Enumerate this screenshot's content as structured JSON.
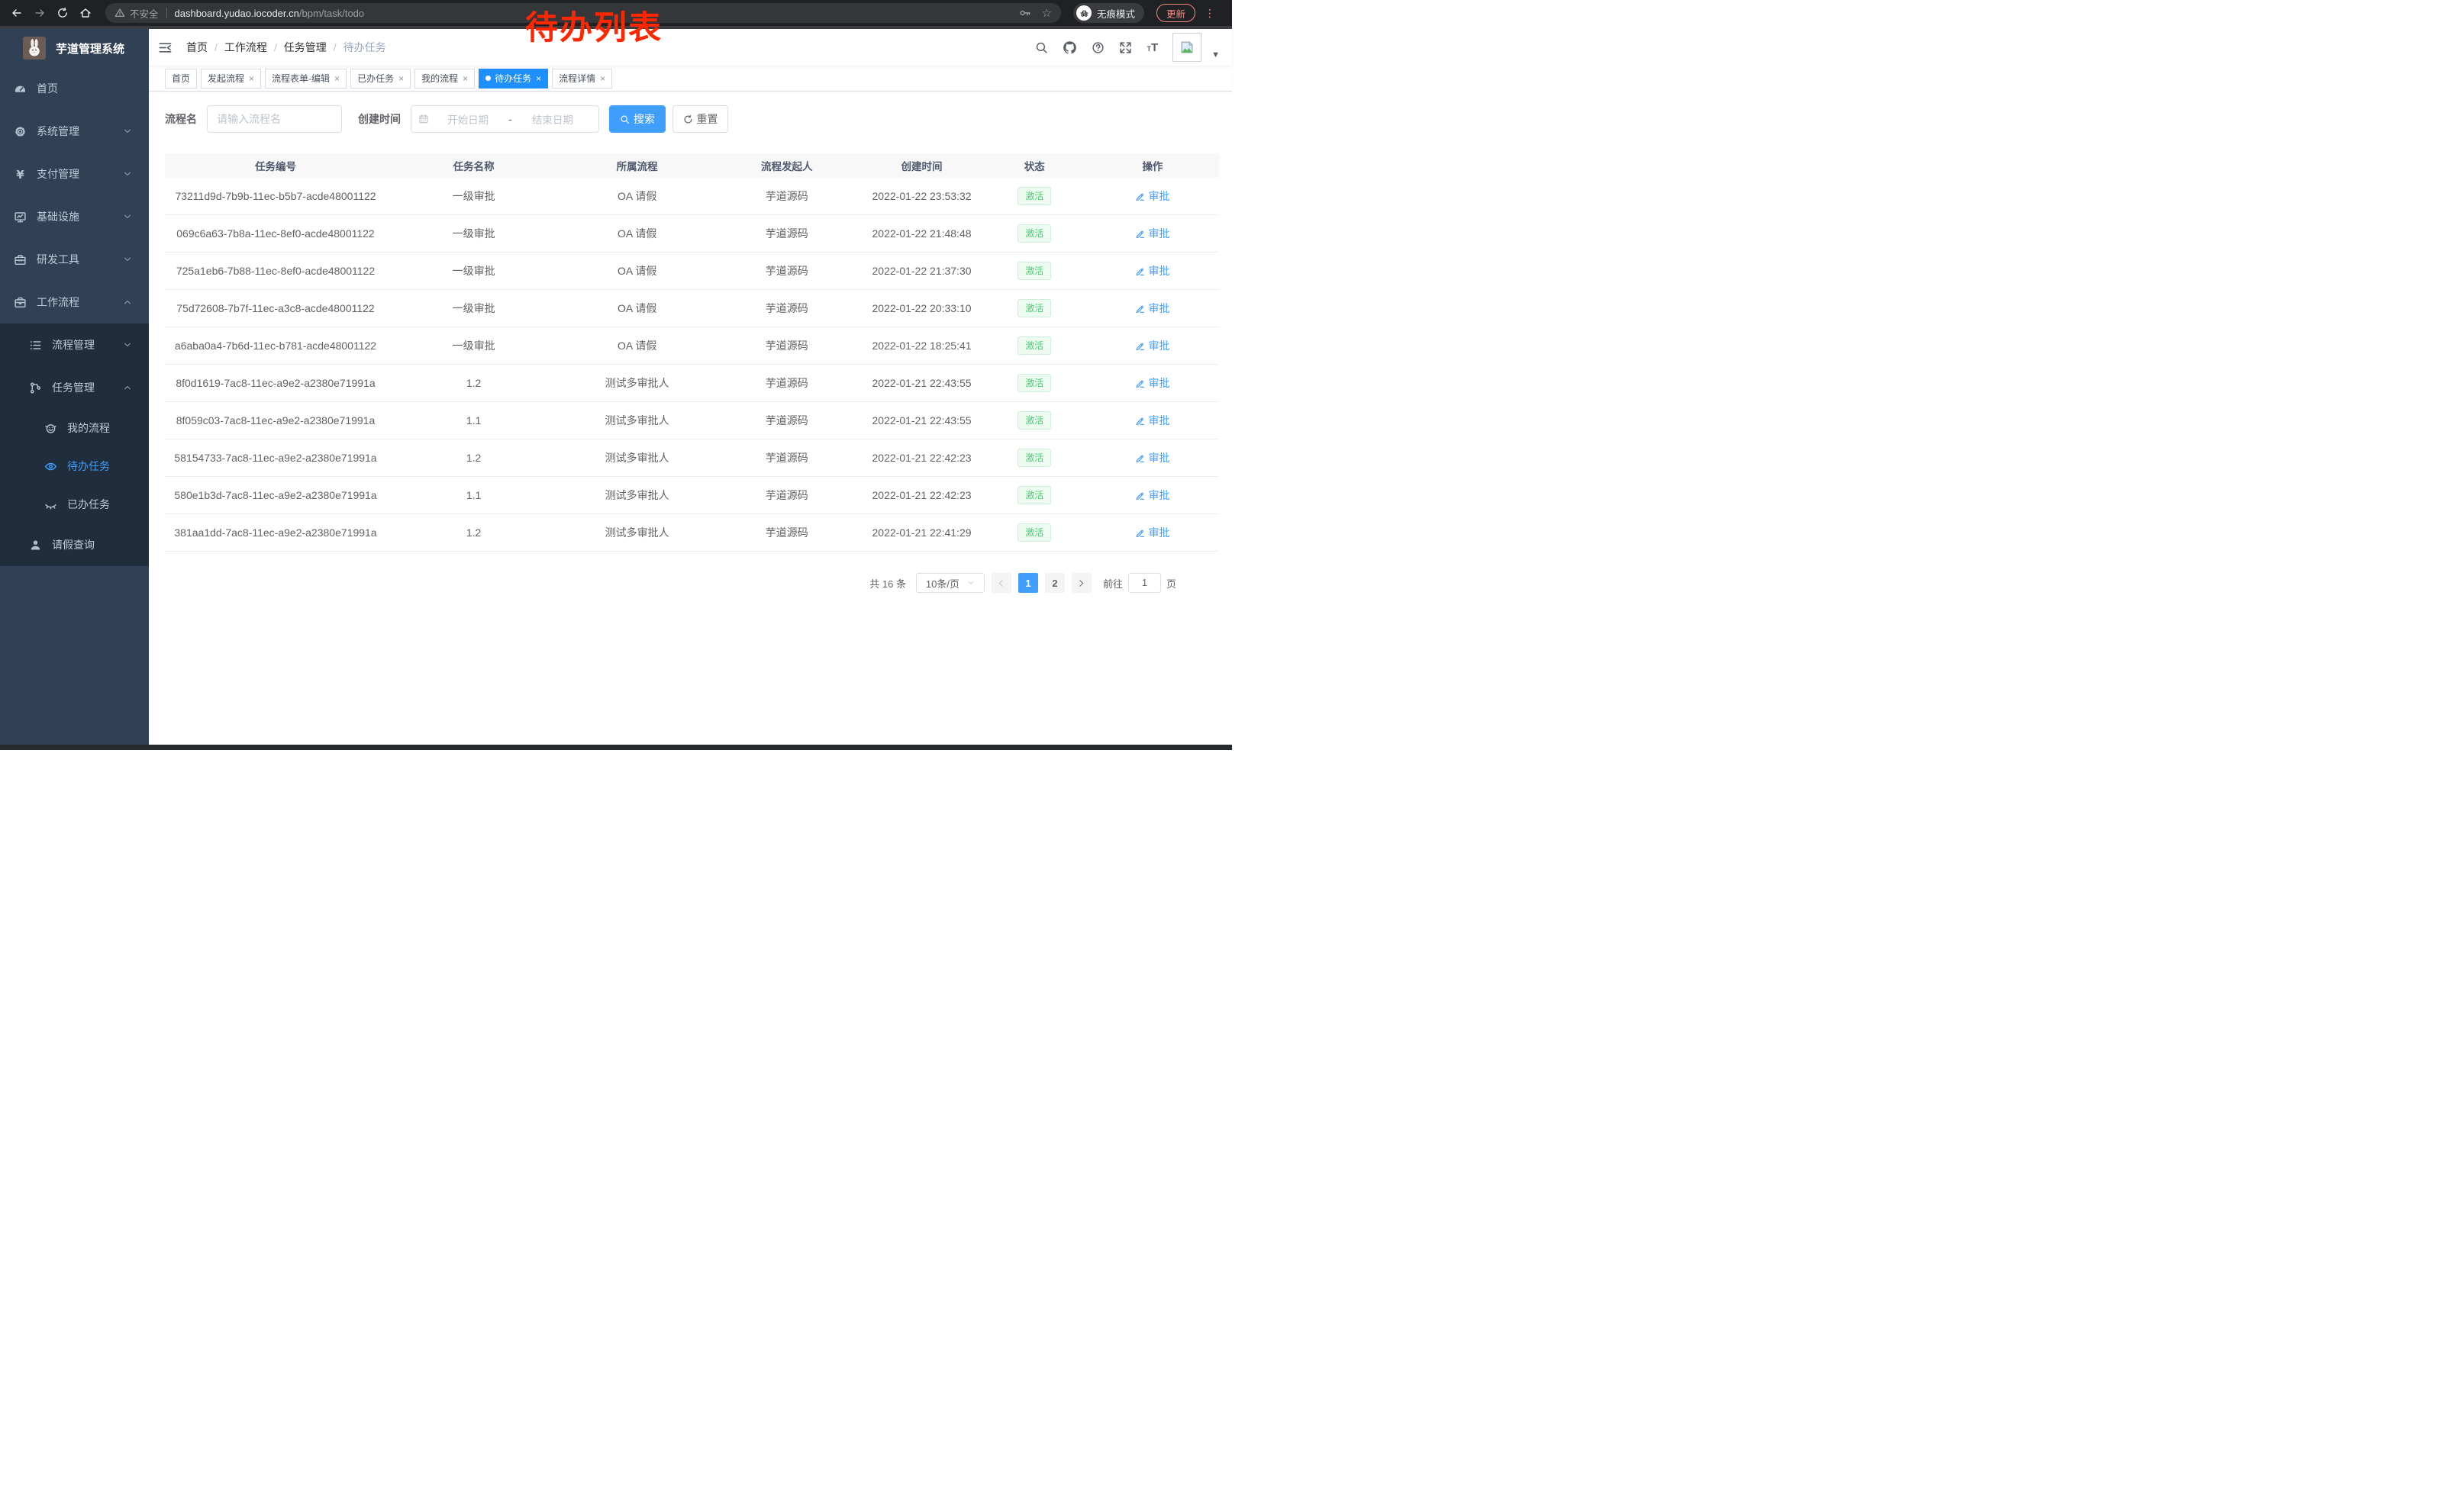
{
  "browser": {
    "security_label": "不安全",
    "url_host": "dashboard.yudao.iocoder.cn",
    "url_path": "/bpm/task/todo",
    "incognito_label": "无痕模式",
    "update_label": "更新",
    "menu_dots": "⋮",
    "star": "☆"
  },
  "annotation": {
    "text": "待办列表",
    "color": "#ff2600"
  },
  "sidebar": {
    "title": "芋道管理系统",
    "items": [
      {
        "label": "首页",
        "icon": "dashboard-icon",
        "level": 1
      },
      {
        "label": "系统管理",
        "icon": "gear-icon",
        "level": 1,
        "chevron": "down"
      },
      {
        "label": "支付管理",
        "icon": "yen-icon",
        "level": 1,
        "chevron": "down"
      },
      {
        "label": "基础设施",
        "icon": "monitor-icon",
        "level": 1,
        "chevron": "down"
      },
      {
        "label": "研发工具",
        "icon": "toolbox-icon",
        "level": 1,
        "chevron": "down"
      },
      {
        "label": "工作流程",
        "icon": "briefcase-icon",
        "level": 1,
        "chevron": "up"
      },
      {
        "label": "流程管理",
        "icon": "list-icon",
        "level": 2,
        "chevron": "down",
        "dark": true
      },
      {
        "label": "任务管理",
        "icon": "flow-icon",
        "level": 2,
        "chevron": "up",
        "dark": true
      },
      {
        "label": "我的流程",
        "icon": "face-icon",
        "level": 3,
        "dark": true
      },
      {
        "label": "待办任务",
        "icon": "eye-icon",
        "level": 3,
        "dark": true,
        "active": true
      },
      {
        "label": "已办任务",
        "icon": "eye-closed-icon",
        "level": 3,
        "dark": true
      },
      {
        "label": "请假查询",
        "icon": "user-icon",
        "level": 2,
        "dark": true
      }
    ]
  },
  "breadcrumb": [
    "首页",
    "工作流程",
    "任务管理",
    "待办任务"
  ],
  "tabs": [
    {
      "label": "首页",
      "closable": false
    },
    {
      "label": "发起流程",
      "closable": true
    },
    {
      "label": "流程表单-编辑",
      "closable": true
    },
    {
      "label": "已办任务",
      "closable": true
    },
    {
      "label": "我的流程",
      "closable": true
    },
    {
      "label": "待办任务",
      "closable": true,
      "active": true
    },
    {
      "label": "流程详情",
      "closable": true
    }
  ],
  "filters": {
    "name_label": "流程名",
    "name_placeholder": "请输入流程名",
    "time_label": "创建时间",
    "start_placeholder": "开始日期",
    "range_separator": "-",
    "end_placeholder": "结束日期",
    "search_label": "搜索",
    "reset_label": "重置"
  },
  "table": {
    "columns": [
      "任务编号",
      "任务名称",
      "所属流程",
      "流程发起人",
      "创建时间",
      "状态",
      "操作"
    ],
    "rows": [
      {
        "id": "73211d9d-7b9b-11ec-b5b7-acde48001122",
        "name": "一级审批",
        "process": "OA 请假",
        "starter": "芋道源码",
        "time": "2022-01-22 23:53:32",
        "status": "激活",
        "action": "审批"
      },
      {
        "id": "069c6a63-7b8a-11ec-8ef0-acde48001122",
        "name": "一级审批",
        "process": "OA 请假",
        "starter": "芋道源码",
        "time": "2022-01-22 21:48:48",
        "status": "激活",
        "action": "审批"
      },
      {
        "id": "725a1eb6-7b88-11ec-8ef0-acde48001122",
        "name": "一级审批",
        "process": "OA 请假",
        "starter": "芋道源码",
        "time": "2022-01-22 21:37:30",
        "status": "激活",
        "action": "审批"
      },
      {
        "id": "75d72608-7b7f-11ec-a3c8-acde48001122",
        "name": "一级审批",
        "process": "OA 请假",
        "starter": "芋道源码",
        "time": "2022-01-22 20:33:10",
        "status": "激活",
        "action": "审批"
      },
      {
        "id": "a6aba0a4-7b6d-11ec-b781-acde48001122",
        "name": "一级审批",
        "process": "OA 请假",
        "starter": "芋道源码",
        "time": "2022-01-22 18:25:41",
        "status": "激活",
        "action": "审批"
      },
      {
        "id": "8f0d1619-7ac8-11ec-a9e2-a2380e71991a",
        "name": "1.2",
        "process": "测试多审批人",
        "starter": "芋道源码",
        "time": "2022-01-21 22:43:55",
        "status": "激活",
        "action": "审批"
      },
      {
        "id": "8f059c03-7ac8-11ec-a9e2-a2380e71991a",
        "name": "1.1",
        "process": "测试多审批人",
        "starter": "芋道源码",
        "time": "2022-01-21 22:43:55",
        "status": "激活",
        "action": "审批"
      },
      {
        "id": "58154733-7ac8-11ec-a9e2-a2380e71991a",
        "name": "1.2",
        "process": "测试多审批人",
        "starter": "芋道源码",
        "time": "2022-01-21 22:42:23",
        "status": "激活",
        "action": "审批"
      },
      {
        "id": "580e1b3d-7ac8-11ec-a9e2-a2380e71991a",
        "name": "1.1",
        "process": "测试多审批人",
        "starter": "芋道源码",
        "time": "2022-01-21 22:42:23",
        "status": "激活",
        "action": "审批"
      },
      {
        "id": "381aa1dd-7ac8-11ec-a9e2-a2380e71991a",
        "name": "1.2",
        "process": "测试多审批人",
        "starter": "芋道源码",
        "time": "2022-01-21 22:41:29",
        "status": "激活",
        "action": "审批"
      }
    ]
  },
  "pagination": {
    "total_label": "共 16 条",
    "page_size_label": "10条/页",
    "pages": [
      {
        "label": "1",
        "active": true
      },
      {
        "label": "2",
        "active": false
      }
    ],
    "goto_label": "前往",
    "goto_value": "1",
    "goto_suffix": "页"
  },
  "colors": {
    "primary": "#409eff",
    "active_tab": "#1e8fff",
    "success_text": "#48cf74",
    "sidebar_bg": "#304156",
    "sidebar_submenu_bg": "#1f2d3d",
    "annotation_red": "#ff2600"
  }
}
